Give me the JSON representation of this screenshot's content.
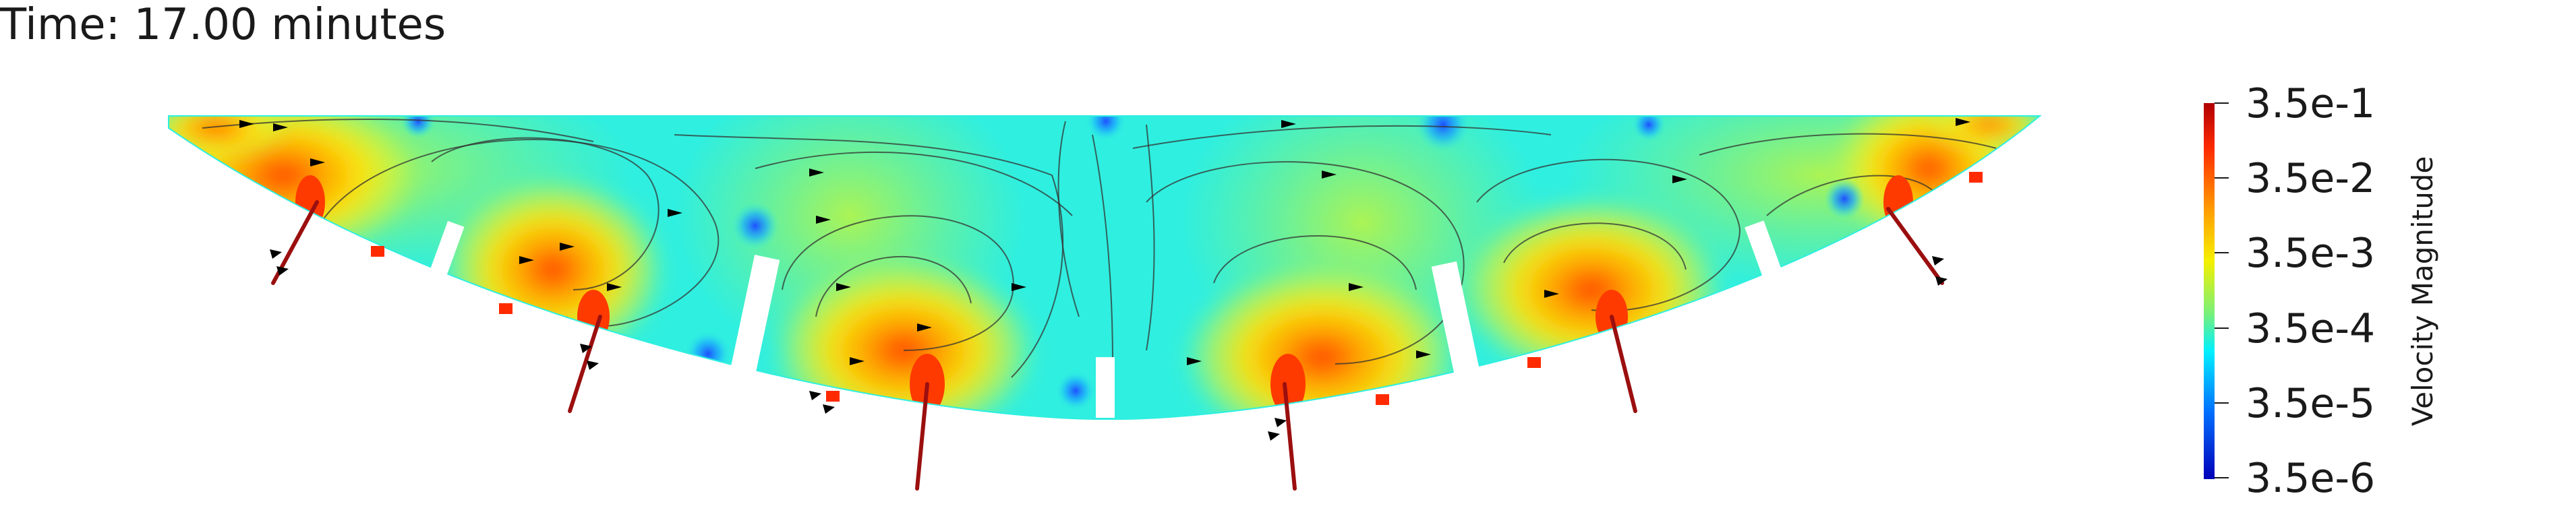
{
  "overlay": {
    "time_label": "Time: 17.00 minutes"
  },
  "colorbar": {
    "title": "Velocity Magnitude",
    "ticks": [
      "3.5e-1",
      "3.5e-2",
      "3.5e-3",
      "3.5e-4",
      "3.5e-5",
      "3.5e-6"
    ],
    "colors": [
      "#b00000",
      "#ff2a00",
      "#ff9a00",
      "#f5f000",
      "#77f07a",
      "#00f0ff",
      "#0070ff",
      "#0000b8"
    ]
  },
  "colors": {
    "background_field": "#2fefe0",
    "mid_field": "#9cf35a",
    "hot_field": "#ffd21a",
    "jet_core": "#ff3a00",
    "nozzle": "#9b0f0f",
    "streamline": "#333333",
    "arrow": "#000000"
  }
}
